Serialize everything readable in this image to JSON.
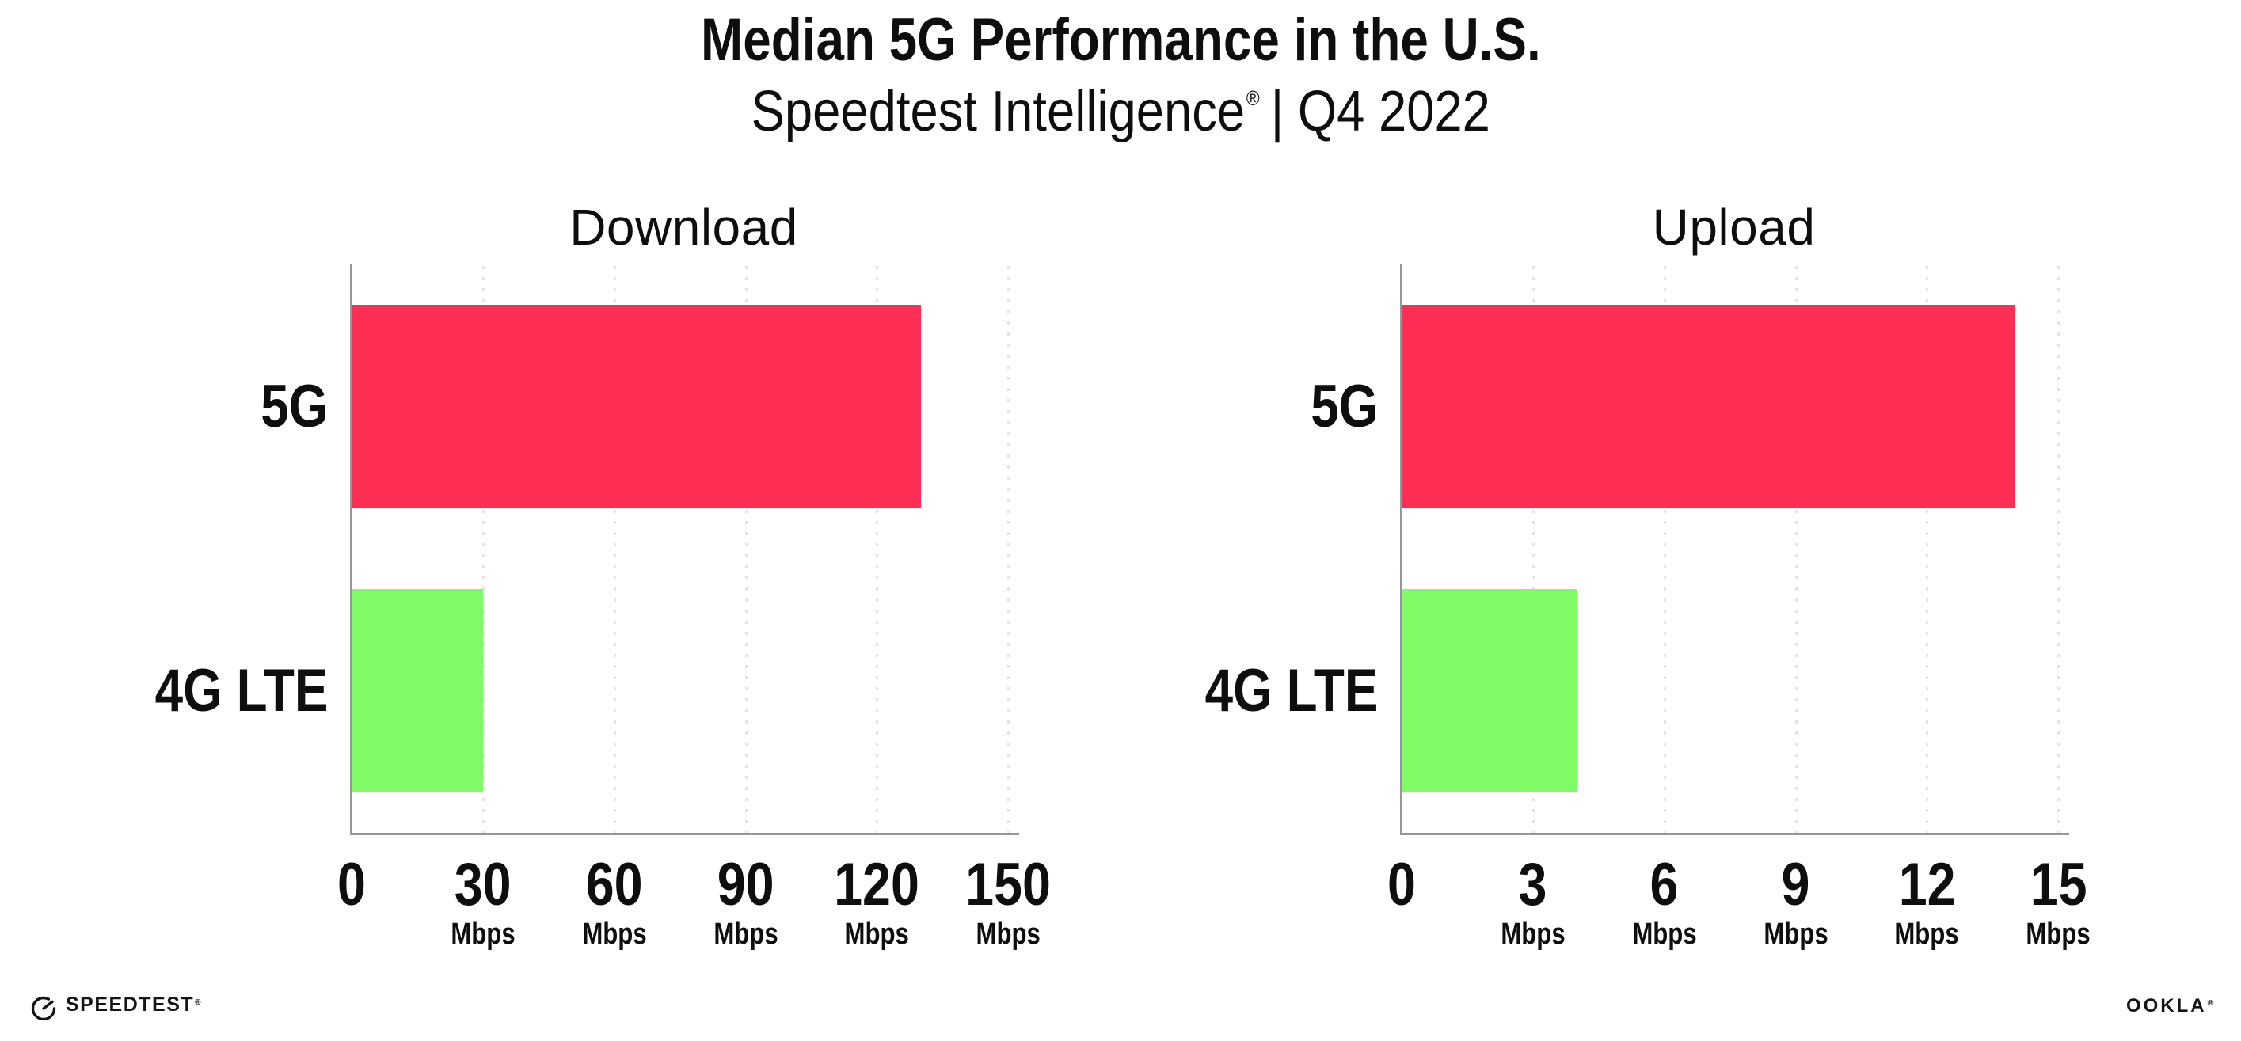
{
  "header": {
    "title": "Median 5G Performance in the U.S.",
    "subtitle_brand": "Speedtest Intelligence",
    "subtitle_reg": "®",
    "subtitle_rest": "| Q4 2022"
  },
  "colors": {
    "pink-5g": "#FF2E55",
    "green-4g": "#80FB66",
    "axis": "#96969b",
    "grid": "#e1e3ef",
    "ink": "#0e0e0e"
  },
  "chart_data": [
    {
      "type": "bar",
      "orientation": "horizontal",
      "title": "Download",
      "categories": [
        "5G",
        "4G LTE"
      ],
      "values": [
        130,
        30
      ],
      "unit": "Mbps",
      "xlim": [
        0,
        152.5
      ],
      "xticks": [
        0,
        30,
        60,
        90,
        120,
        150
      ],
      "grid": "dotted-vertical",
      "legend": "none",
      "bar_colors": [
        "#FF2E55",
        "#80FB66"
      ]
    },
    {
      "type": "bar",
      "orientation": "horizontal",
      "title": "Upload",
      "categories": [
        "5G",
        "4G LTE"
      ],
      "values": [
        14,
        4
      ],
      "unit": "Mbps",
      "xlim": [
        0,
        15.25
      ],
      "xticks": [
        0,
        3,
        6,
        9,
        12,
        15
      ],
      "grid": "dotted-vertical",
      "legend": "none",
      "bar_colors": [
        "#FF2E55",
        "#80FB66"
      ]
    }
  ],
  "footer": {
    "speedtest_label": "SPEEDTEST",
    "speedtest_reg": "®",
    "ookla_label": "OOKLA",
    "ookla_reg": "®"
  }
}
